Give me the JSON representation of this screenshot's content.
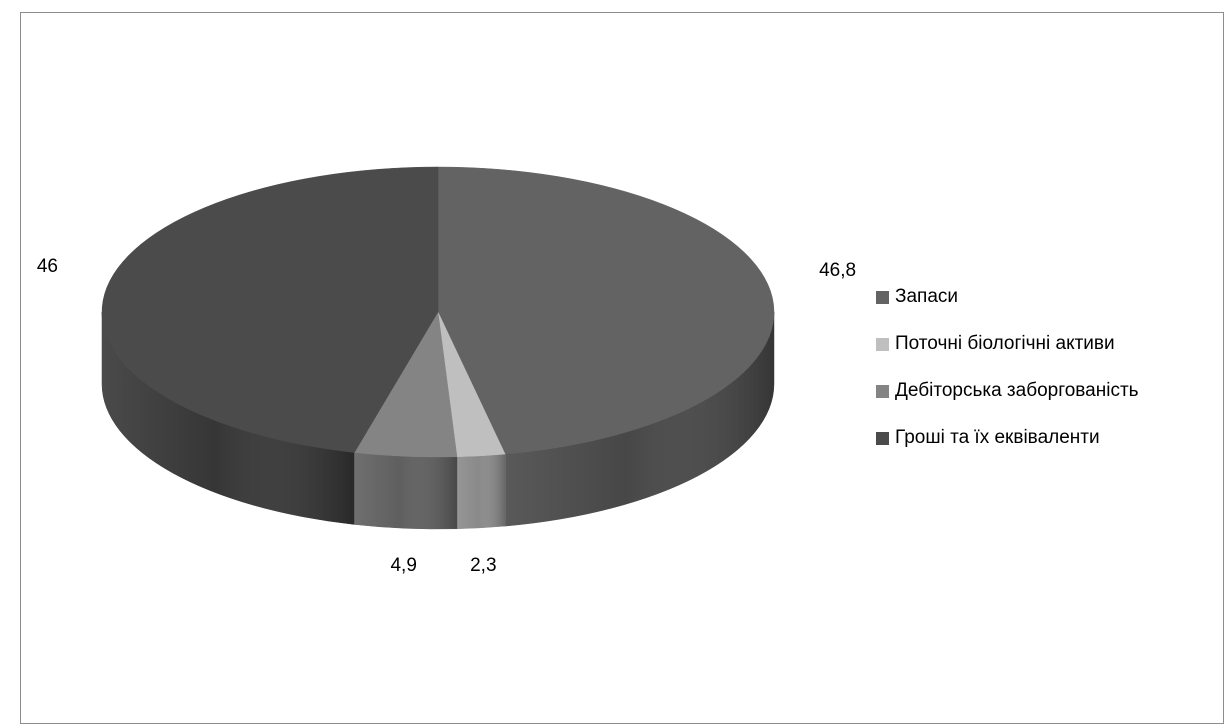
{
  "chart_data": {
    "type": "pie",
    "style": "3d",
    "title": "",
    "categories": [
      "Запаси",
      "Поточні біологічні активи",
      "Дебіторська заборгованість",
      "Гроші та їх еквіваленти"
    ],
    "values": [
      46.8,
      2.3,
      4.9,
      46
    ],
    "data_labels": [
      "46,8",
      "2,3",
      "4,9",
      "46"
    ],
    "colors": [
      "#636363",
      "#bfbfbf",
      "#848484",
      "#4b4b4b"
    ],
    "legend_position": "right"
  },
  "legend": {
    "items": [
      {
        "label": "Запаси",
        "color": "#636363"
      },
      {
        "label": "Поточні біологічні активи",
        "color": "#bfbfbf"
      },
      {
        "label": "Дебіторська заборгованість",
        "color": "#848484"
      },
      {
        "label": "Гроші та їх еквіваленти",
        "color": "#4b4b4b"
      }
    ]
  }
}
